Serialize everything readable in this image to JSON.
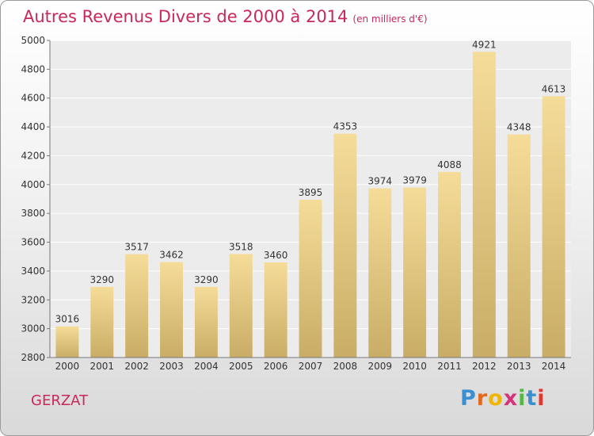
{
  "header": {
    "title": "Autres Revenus Divers de 2000 à 2014",
    "unit": "(en milliers d'€)"
  },
  "footer": {
    "city": "GERZAT",
    "logo": {
      "letters": [
        "P",
        "r",
        "o",
        "x",
        "i",
        "t",
        "i"
      ]
    }
  },
  "colors": {
    "title": "#c8285a",
    "logo": [
      "#3a8fd0",
      "#e06a1f",
      "#f0b400",
      "#d8327a",
      "#54b848",
      "#3a8fd0",
      "#e2362f"
    ],
    "bar_top": "#f5dc98",
    "bar_bottom": "#c9ad66"
  },
  "chart_data": {
    "type": "bar",
    "categories": [
      "2000",
      "2001",
      "2002",
      "2003",
      "2004",
      "2005",
      "2006",
      "2007",
      "2008",
      "2009",
      "2010",
      "2011",
      "2012",
      "2013",
      "2014"
    ],
    "values": [
      3016,
      3290,
      3517,
      3462,
      3290,
      3518,
      3460,
      3895,
      4353,
      3974,
      3979,
      4088,
      4921,
      4348,
      4613
    ],
    "ylim": [
      2800,
      5000
    ],
    "yticks": [
      2800,
      3000,
      3200,
      3400,
      3600,
      3800,
      4000,
      4200,
      4400,
      4600,
      4800,
      5000
    ],
    "grid": true
  }
}
